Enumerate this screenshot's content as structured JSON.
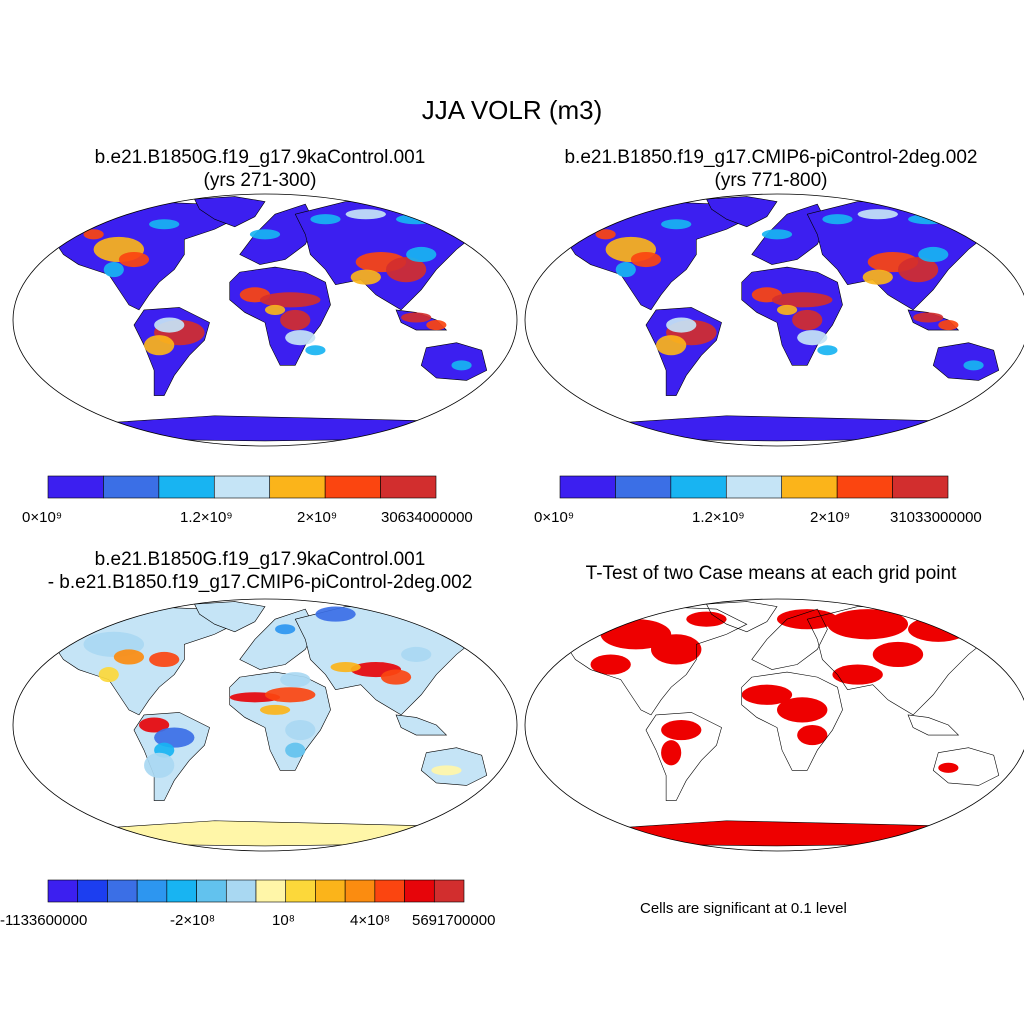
{
  "title": "JJA VOLR (m3)",
  "panels": {
    "case1": {
      "title_line1": "b.e21.B1850G.f19_g17.9kaControl.001",
      "title_line2": "(yrs 271-300)",
      "colorbar": {
        "colors": [
          "#3c1ff0",
          "#3b6fe6",
          "#18b4f2",
          "#c5e4f6",
          "#fbb41a",
          "#fb4510",
          "#d22e2e"
        ],
        "tick_labels": [
          "0×10⁹",
          "1.2×10⁹",
          "2×10⁹",
          "30634000000"
        ]
      }
    },
    "case2": {
      "title_line1": "b.e21.B1850.f19_g17.CMIP6-piControl-2deg.002",
      "title_line2": "(yrs 771-800)",
      "colorbar": {
        "colors": [
          "#3c1ff0",
          "#3b6fe6",
          "#18b4f2",
          "#c5e4f6",
          "#fbb41a",
          "#fb4510",
          "#d22e2e"
        ],
        "tick_labels": [
          "0×10⁹",
          "1.2×10⁹",
          "2×10⁹",
          "31033000000"
        ]
      }
    },
    "diff": {
      "title_line1": "b.e21.B1850G.f19_g17.9kaControl.001",
      "title_line2": "- b.e21.B1850.f19_g17.CMIP6-piControl-2deg.002",
      "colorbar": {
        "colors": [
          "#3c1ff0",
          "#1c3ef0",
          "#3b6fe6",
          "#2d96f0",
          "#18b4f2",
          "#62c2ee",
          "#a9d8f2",
          "#fff6a8",
          "#fcd83a",
          "#fbb41a",
          "#fb8c10",
          "#fb4510",
          "#e6050a",
          "#d22e2e"
        ],
        "tick_labels": [
          "-1133600000",
          "-2×10⁸",
          "10⁸",
          "4×10⁸",
          "5691700000"
        ]
      }
    },
    "ttest": {
      "title": "T-Test of two Case means at each grid point",
      "note": "Cells are significant at 0.1 level",
      "color": "#ee0000"
    }
  },
  "map_colors": {
    "land_base": "#3c1ff0",
    "ocean": "#ffffff",
    "diff_base": "#c5e4f6",
    "diff_yellow": "#fff6a8",
    "coast": "#000000"
  }
}
